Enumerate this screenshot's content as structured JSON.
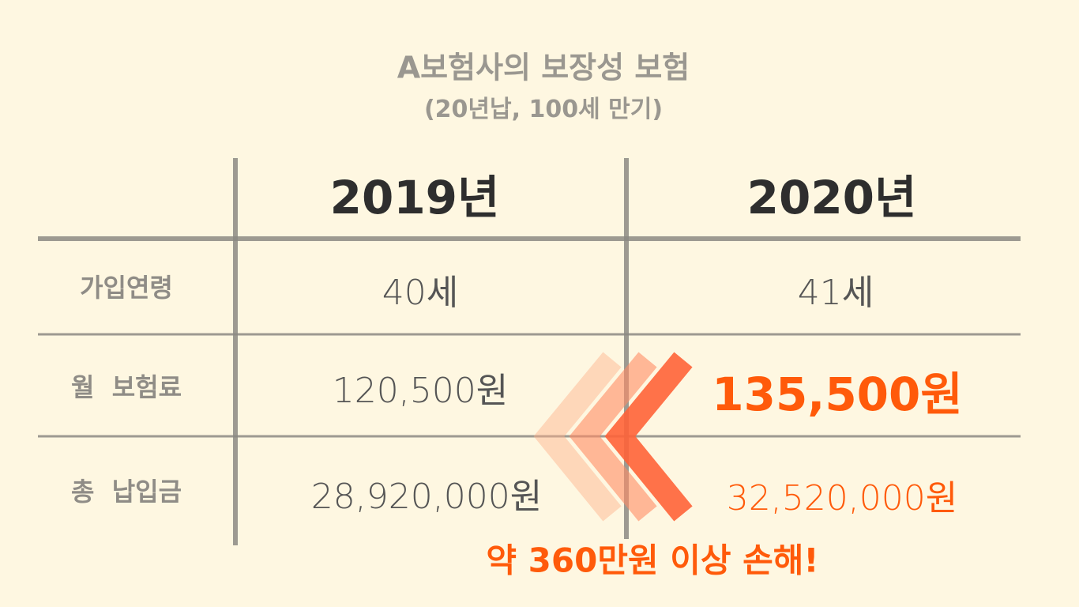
{
  "header": {
    "title": "A보험사의 보장성 보험",
    "subtitle": "(20년납, 100세 만기)"
  },
  "table": {
    "columns": [
      "2019년",
      "2020년"
    ],
    "rows": [
      {
        "label": "가입연령",
        "cells": [
          "40세",
          "41세"
        ]
      },
      {
        "label": "월  보험료",
        "cells": [
          "120,500원",
          "135,500원"
        ]
      },
      {
        "label": "총  납입금",
        "cells": [
          "28,920,000원",
          "32,520,000원"
        ]
      }
    ]
  },
  "annotation": "약 360만원 이상 손해!"
}
